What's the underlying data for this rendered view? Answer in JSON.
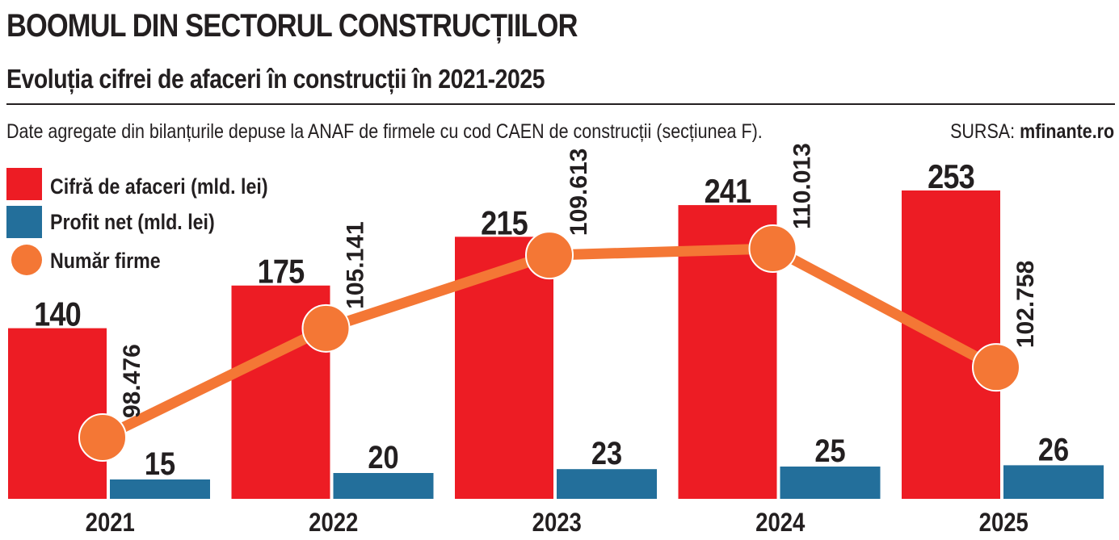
{
  "header": {
    "title": "BOOMUL DIN SECTORUL CONSTRUCȚIILOR",
    "subtitle": "Evoluția cifrei de afaceri în construcții în 2021-2025",
    "note": "Date agregate din bilanțurile depuse la ANAF de firmele cu cod CAEN de construcții (secțiunea F).",
    "source_label": "SURSA:",
    "source_value": "mfinante.ro"
  },
  "colors": {
    "revenue": "#ed1c24",
    "profit": "#236f9b",
    "firms": "#f47735",
    "text": "#231f20"
  },
  "chart_data": {
    "type": "bar",
    "categories": [
      "2021",
      "2022",
      "2023",
      "2024",
      "2025"
    ],
    "series": [
      {
        "name": "Cifră de afaceri (mld. lei)",
        "type": "bar",
        "values": [
          140,
          175,
          215,
          241,
          253
        ],
        "labels": [
          "140",
          "175",
          "215",
          "241",
          "253"
        ]
      },
      {
        "name": "Profit net (mld. lei)",
        "type": "bar",
        "values": [
          15,
          20,
          23,
          25,
          26
        ],
        "labels": [
          "15",
          "20",
          "23",
          "25",
          "26"
        ]
      },
      {
        "name": "Număr firme",
        "type": "line",
        "values": [
          98476,
          105141,
          109613,
          110013,
          102758
        ],
        "labels": [
          "98.476",
          "105.141",
          "109.613",
          "110.013",
          "102.758"
        ]
      }
    ],
    "legend_position": "top-left",
    "grid": false
  }
}
